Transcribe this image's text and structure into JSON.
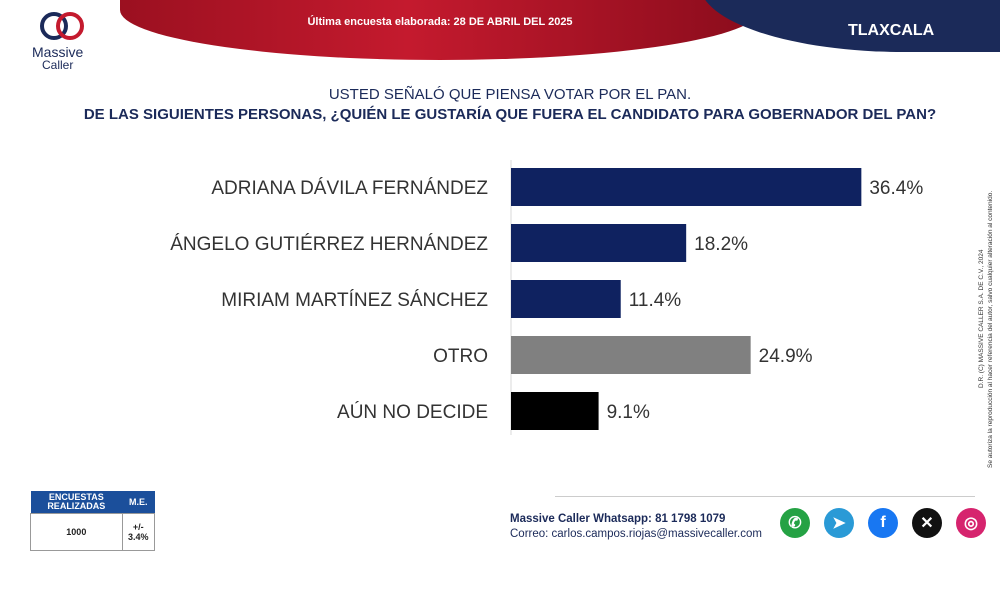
{
  "header": {
    "survey_date_text": "Última encuesta elaborada: 28 DE ABRIL DEL 2025",
    "state": "TLAXCALA",
    "logo_line1": "Massive",
    "logo_line2": "Caller"
  },
  "question": {
    "line1": "USTED SEÑALÓ QUE PIENSA VOTAR POR EL PAN.",
    "line2": "DE LAS SIGUIENTES PERSONAS,  ¿QUIÉN LE GUSTARÍA QUE FUERA EL CANDIDATO PARA GOBERNADOR DEL PAN?"
  },
  "chart_data": {
    "type": "bar",
    "orientation": "horizontal",
    "categories": [
      "ADRIANA DÁVILA FERNÁNDEZ",
      "ÁNGELO GUTIÉRREZ HERNÁNDEZ",
      "MIRIAM MARTÍNEZ SÁNCHEZ",
      "OTRO",
      "AÚN NO DECIDE"
    ],
    "values": [
      36.4,
      18.2,
      11.4,
      24.9,
      9.1
    ],
    "labels": [
      "36.4%",
      "18.2%",
      "11.4%",
      "24.9%",
      "9.1%"
    ],
    "colors": [
      "#0f2260",
      "#0f2260",
      "#0f2260",
      "#808080",
      "#000000"
    ],
    "xlim": [
      0,
      40
    ],
    "title": "",
    "xlabel": "",
    "ylabel": ""
  },
  "sample": {
    "col1_header": "ENCUESTAS REALIZADAS",
    "col2_header": "M.E.",
    "count": "1000",
    "margin": "+/- 3.4%"
  },
  "contact": {
    "whatsapp": "Massive Caller Whatsapp: 81 1798 1079",
    "email": "Correo: carlos.campos.riojas@massivecaller.com"
  },
  "social": {
    "icons": [
      "whatsapp-icon",
      "telegram-icon",
      "facebook-icon",
      "x-icon",
      "instagram-icon"
    ],
    "colors": [
      "#25a244",
      "#2a9ad6",
      "#1877f2",
      "#111111",
      "#d6246e"
    ]
  },
  "legal": {
    "line1": "D.R. (C) MASSIVE CALLER S.A. DE C.V., 2024",
    "line2": "Se autoriza la reproducción al hacer referencia del autor, salvo cualquier alteración al contenido."
  }
}
